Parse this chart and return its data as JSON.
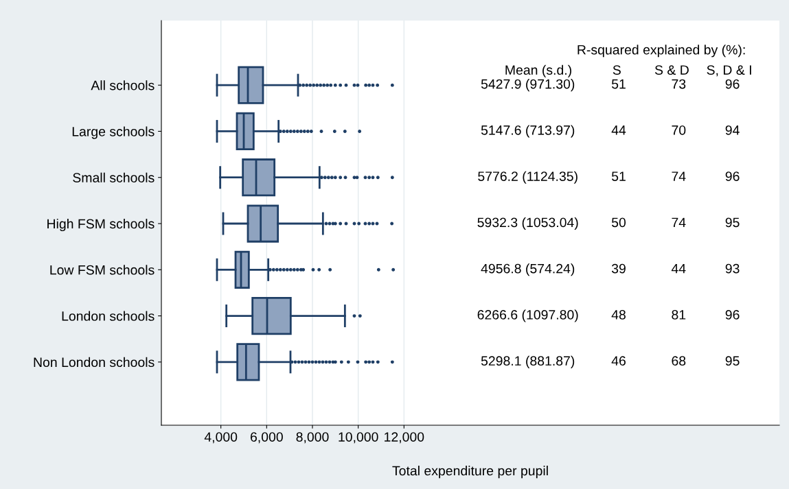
{
  "chart_data": {
    "type": "box",
    "orientation": "horizontal",
    "xlabel": "Total expenditure per pupil",
    "categories": [
      "All schools",
      "Large schools",
      "Small schools",
      "High FSM schools",
      "Low FSM schools",
      "London schools",
      "Non London schools"
    ],
    "boxes": [
      {
        "low": 3830,
        "q1": 4780,
        "median": 5180,
        "q3": 5840,
        "high": 7370,
        "outliers": [
          7450,
          7600,
          7750,
          7900,
          8050,
          8200,
          8350,
          8500,
          8650,
          8800,
          9000,
          9220,
          9470,
          9830,
          9980,
          10330,
          10480,
          10640,
          10840,
          11490
        ]
      },
      {
        "low": 3830,
        "q1": 4700,
        "median": 5000,
        "q3": 5430,
        "high": 6520,
        "outliers": [
          6600,
          6750,
          6900,
          7050,
          7200,
          7350,
          7500,
          7650,
          7800,
          7950,
          8390,
          8970,
          9420,
          10060
        ]
      },
      {
        "low": 3970,
        "q1": 4960,
        "median": 5540,
        "q3": 6340,
        "high": 8310,
        "outliers": [
          8400,
          8550,
          8700,
          8850,
          9000,
          9220,
          9440,
          9830,
          9950,
          10310,
          10480,
          10640,
          10860,
          11490
        ]
      },
      {
        "low": 4100,
        "q1": 5180,
        "median": 5740,
        "q3": 6490,
        "high": 8460,
        "outliers": [
          8600,
          8750,
          8900,
          9000,
          9220,
          9470,
          9830,
          10030,
          10310,
          10480,
          10640,
          10820,
          11470
        ]
      },
      {
        "low": 3830,
        "q1": 4640,
        "median": 4880,
        "q3": 5220,
        "high": 6070,
        "outliers": [
          6150,
          6300,
          6450,
          6600,
          6750,
          6900,
          7050,
          7200,
          7350,
          7500,
          7600,
          8030,
          8290,
          8770,
          10890,
          11530
        ]
      },
      {
        "low": 4240,
        "q1": 5380,
        "median": 6020,
        "q3": 7050,
        "high": 9420,
        "outliers": [
          9830,
          10080
        ]
      },
      {
        "low": 3830,
        "q1": 4720,
        "median": 5100,
        "q3": 5660,
        "high": 7040,
        "outliers": [
          7100,
          7250,
          7400,
          7550,
          7700,
          7850,
          8000,
          8150,
          8300,
          8450,
          8600,
          8750,
          8900,
          9000,
          9270,
          9570,
          9980,
          10330,
          10480,
          10640,
          10860,
          11490
        ]
      }
    ],
    "color": "#8fa3bf",
    "xlim": [
      1400,
      28400
    ],
    "xticks": [
      {
        "value": 4000,
        "label": "4,000"
      },
      {
        "value": 6000,
        "label": "6,000"
      },
      {
        "value": 8000,
        "label": "8,000"
      },
      {
        "value": 10000,
        "label": "10,000"
      },
      {
        "value": 12000,
        "label": "12,000"
      }
    ],
    "grid": "x",
    "annotations": [
      "R-squared explained by (%):",
      "Mean (s.d.)",
      "S",
      "S & D",
      "S, D & I",
      "5427.9 (971.30)",
      "51",
      "73",
      "96",
      "5147.6 (713.97)",
      "44",
      "70",
      "94",
      "5776.2 (1124.35)",
      "51",
      "74",
      "96",
      "5932.3 (1053.04)",
      "50",
      "74",
      "95",
      "4956.8 (574.24)",
      "39",
      "44",
      "93",
      "6266.6 (1097.80)",
      "48",
      "81",
      "96",
      "5298.1 (881.87)",
      "46",
      "68",
      "95"
    ]
  }
}
